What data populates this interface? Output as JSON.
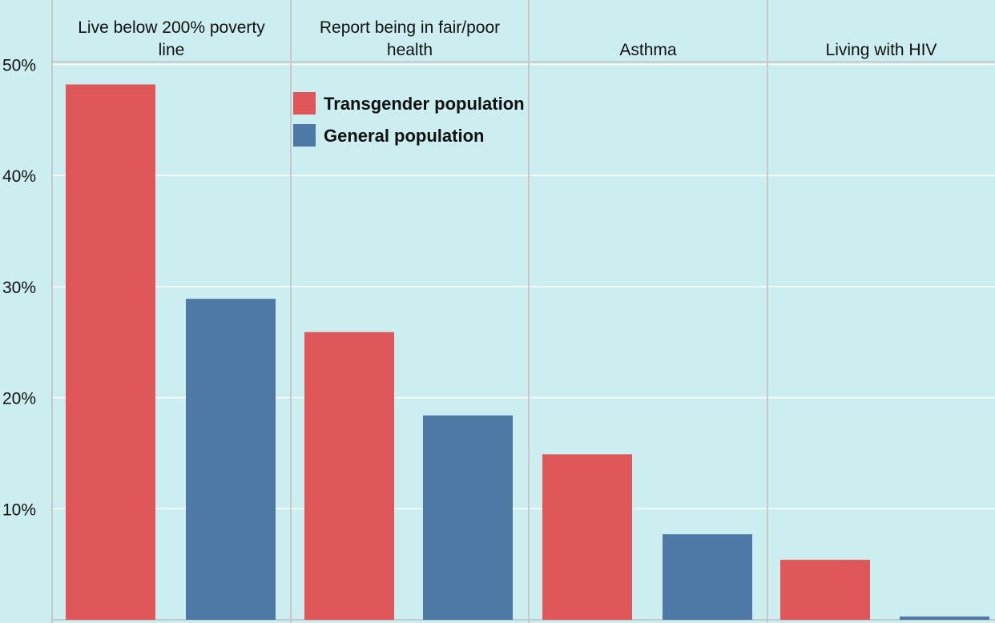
{
  "chart_data": {
    "type": "bar",
    "title": "",
    "xlabel": "",
    "ylabel": "",
    "ylim": [
      0,
      52
    ],
    "yticks": [
      10,
      20,
      30,
      40,
      50
    ],
    "ytick_labels": [
      "10%",
      "20%",
      "30%",
      "40%",
      "50%"
    ],
    "grid": true,
    "legend_position": "top-left of second panel",
    "categories": [
      [
        "Live below 200% poverty",
        "line"
      ],
      [
        "Report being in fair/poor",
        "health"
      ],
      [
        "Asthma"
      ],
      [
        "Living with HIV"
      ]
    ],
    "series": [
      {
        "name": "Transgender population",
        "color": "#e05759",
        "values": [
          48.2,
          25.9,
          14.9,
          5.4
        ]
      },
      {
        "name": "General population",
        "color": "#4e79a7",
        "values": [
          28.9,
          18.4,
          7.7,
          0.3
        ]
      }
    ]
  }
}
